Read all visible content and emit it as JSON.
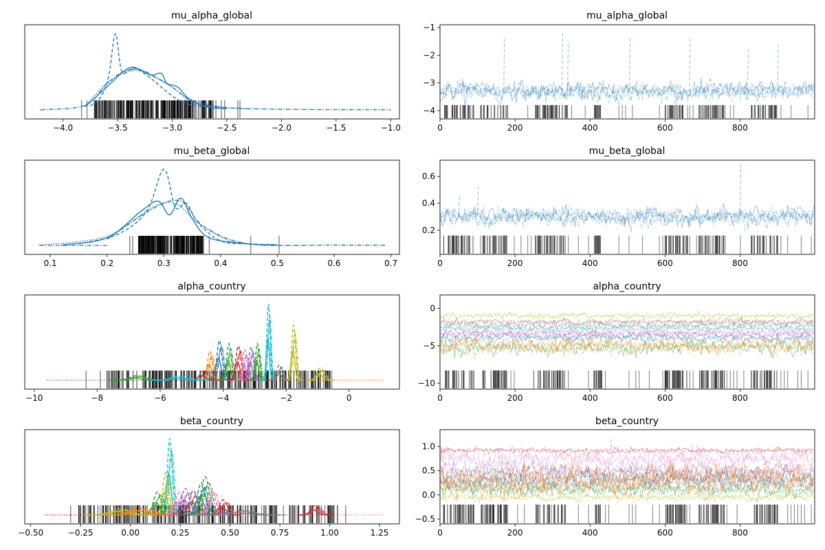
{
  "chart_data": [
    {
      "type": "area",
      "title": "mu_alpha_global",
      "xlabel": "",
      "ylabel": "",
      "xlim": [
        -4.35,
        -0.92
      ],
      "xticks": [
        -4.0,
        -3.5,
        -3.0,
        -2.5,
        -2.0,
        -1.5,
        -1.0
      ],
      "xtick_labels": [
        "−4.0",
        "−3.5",
        "−3.0",
        "−2.5",
        "−2.0",
        "−1.5",
        "−1.0"
      ],
      "color": "#1f77b4",
      "series": [
        {
          "style": "dashed",
          "points": [
            [
              -3.75,
              0.05
            ],
            [
              -3.65,
              0.18
            ],
            [
              -3.58,
              0.45
            ],
            [
              -3.52,
              1.0
            ],
            [
              -3.46,
              0.5
            ],
            [
              -3.35,
              0.55
            ],
            [
              -3.2,
              0.42
            ],
            [
              -3.05,
              0.24
            ],
            [
              -2.9,
              0.1
            ],
            [
              -2.7,
              0.04
            ],
            [
              -2.5,
              0.015
            ]
          ]
        },
        {
          "style": "solid",
          "points": [
            [
              -3.8,
              0.04
            ],
            [
              -3.6,
              0.3
            ],
            [
              -3.45,
              0.5
            ],
            [
              -3.35,
              0.56
            ],
            [
              -3.2,
              0.46
            ],
            [
              -3.1,
              0.48
            ],
            [
              -3.05,
              0.35
            ],
            [
              -2.95,
              0.3
            ],
            [
              -2.85,
              0.15
            ],
            [
              -2.7,
              0.05
            ],
            [
              -2.5,
              0.015
            ]
          ]
        },
        {
          "style": "dotted",
          "points": [
            [
              -3.8,
              0.05
            ],
            [
              -3.6,
              0.35
            ],
            [
              -3.45,
              0.48
            ],
            [
              -3.3,
              0.52
            ],
            [
              -3.15,
              0.42
            ],
            [
              -3.0,
              0.3
            ],
            [
              -2.85,
              0.15
            ],
            [
              -2.6,
              0.05
            ],
            [
              -2.3,
              0.015
            ]
          ]
        },
        {
          "style": "dashdot",
          "points": [
            [
              -4.2,
              0.003
            ],
            [
              -3.8,
              0.06
            ],
            [
              -3.6,
              0.34
            ],
            [
              -3.45,
              0.5
            ],
            [
              -3.3,
              0.53
            ],
            [
              -3.15,
              0.43
            ],
            [
              -3.0,
              0.3
            ],
            [
              -2.8,
              0.1
            ],
            [
              -2.5,
              0.03
            ],
            [
              -2.0,
              0.01
            ],
            [
              -1.5,
              0.005
            ],
            [
              -1.0,
              0.003
            ]
          ]
        }
      ],
      "rug": {
        "band": [
          -3.72,
          -2.62
        ],
        "isolated": [
          -3.83,
          -3.78,
          -2.6,
          -2.55,
          -2.52,
          -2.4,
          -2.38
        ]
      }
    },
    {
      "type": "line",
      "title": "mu_alpha_global",
      "xlabel": "",
      "ylabel": "",
      "xlim": [
        0,
        999
      ],
      "ylim": [
        -4.3,
        -0.9
      ],
      "xticks": [
        0,
        200,
        400,
        600,
        800
      ],
      "xtick_labels": [
        "0",
        "200",
        "400",
        "600",
        "800"
      ],
      "yticks": [
        -4,
        -3,
        -2,
        -1
      ],
      "ytick_labels": [
        "−4",
        "−3",
        "−2",
        "−1"
      ],
      "series_center": -3.3,
      "series_spread": 0.25,
      "spikes": [
        [
          170,
          -1.3
        ],
        [
          325,
          -1.1
        ],
        [
          340,
          -1.5
        ],
        [
          505,
          -1.3
        ],
        [
          665,
          -1.4
        ],
        [
          820,
          -1.8
        ],
        [
          900,
          -1.6
        ]
      ],
      "divergences": {
        "rug_y": -3.8,
        "dense_ranges": [
          [
            10,
            90
          ],
          [
            110,
            180
          ],
          [
            250,
            340
          ],
          [
            410,
            430
          ],
          [
            600,
            660
          ],
          [
            690,
            760
          ],
          [
            830,
            900
          ]
        ]
      }
    },
    {
      "type": "area",
      "title": "mu_beta_global",
      "xlabel": "",
      "ylabel": "",
      "xlim": [
        0.055,
        0.715
      ],
      "xticks": [
        0.1,
        0.2,
        0.3,
        0.4,
        0.5,
        0.6,
        0.7
      ],
      "xtick_labels": [
        "0.1",
        "0.2",
        "0.3",
        "0.4",
        "0.5",
        "0.6",
        "0.7"
      ],
      "color": "#1f77b4",
      "series": [
        {
          "style": "dashed",
          "points": [
            [
              0.15,
              0.02
            ],
            [
              0.22,
              0.15
            ],
            [
              0.27,
              0.45
            ],
            [
              0.3,
              1.0
            ],
            [
              0.32,
              0.5
            ],
            [
              0.34,
              0.55
            ],
            [
              0.36,
              0.3
            ],
            [
              0.4,
              0.06
            ],
            [
              0.45,
              0.02
            ],
            [
              0.5,
              0.01
            ]
          ]
        },
        {
          "style": "solid",
          "points": [
            [
              0.12,
              0.005
            ],
            [
              0.2,
              0.1
            ],
            [
              0.26,
              0.45
            ],
            [
              0.29,
              0.58
            ],
            [
              0.31,
              0.4
            ],
            [
              0.33,
              0.62
            ],
            [
              0.35,
              0.35
            ],
            [
              0.38,
              0.1
            ],
            [
              0.45,
              0.02
            ],
            [
              0.5,
              0.005
            ]
          ]
        },
        {
          "style": "dotted",
          "points": [
            [
              0.08,
              0.005
            ],
            [
              0.2,
              0.12
            ],
            [
              0.28,
              0.5
            ],
            [
              0.32,
              0.55
            ],
            [
              0.36,
              0.3
            ],
            [
              0.42,
              0.05
            ],
            [
              0.5,
              0.01
            ]
          ]
        },
        {
          "style": "dashdot",
          "points": [
            [
              0.2,
              0.08
            ],
            [
              0.28,
              0.48
            ],
            [
              0.33,
              0.58
            ],
            [
              0.37,
              0.25
            ],
            [
              0.45,
              0.02
            ],
            [
              0.6,
              0.005
            ],
            [
              0.69,
              0.003
            ]
          ]
        }
      ],
      "rug": {
        "band": [
          0.255,
          0.37
        ],
        "isolated": [
          0.24,
          0.245,
          0.37,
          0.38,
          0.453,
          0.503
        ]
      }
    },
    {
      "type": "line",
      "title": "mu_beta_global",
      "xlabel": "",
      "ylabel": "",
      "xlim": [
        0,
        999
      ],
      "ylim": [
        0.02,
        0.72
      ],
      "xticks": [
        0,
        200,
        400,
        600,
        800
      ],
      "xtick_labels": [
        "0",
        "200",
        "400",
        "600",
        "800"
      ],
      "yticks": [
        0.2,
        0.4,
        0.6
      ],
      "ytick_labels": [
        "0.2",
        "0.4",
        "0.6"
      ],
      "series_center": 0.3,
      "series_spread": 0.05,
      "spikes": [
        [
          100,
          0.52
        ],
        [
          800,
          0.7
        ],
        [
          50,
          0.45
        ]
      ],
      "divergences": {
        "rug_y": 0.16,
        "dense_ranges": [
          [
            10,
            90
          ],
          [
            110,
            180
          ],
          [
            250,
            340
          ],
          [
            410,
            430
          ],
          [
            600,
            660
          ],
          [
            690,
            760
          ],
          [
            830,
            900
          ]
        ]
      }
    },
    {
      "type": "area",
      "title": "alpha_country",
      "xlabel": "",
      "ylabel": "",
      "xlim": [
        -10.3,
        1.6
      ],
      "xticks": [
        -10,
        -8,
        -6,
        -4,
        -2,
        0
      ],
      "xtick_labels": [
        "−10",
        "−8",
        "−6",
        "−4",
        "−2",
        "0"
      ],
      "palette": [
        "#1f77b4",
        "#ff7f0e",
        "#2ca02c",
        "#d62728",
        "#9467bd",
        "#8c564b",
        "#e377c2",
        "#7f7f7f",
        "#bcbd22",
        "#17becf"
      ],
      "peaks": [
        {
          "loc": -4.4,
          "h": 0.38,
          "w": 0.08,
          "color": "#ff7f0e"
        },
        {
          "loc": -4.1,
          "h": 0.52,
          "w": 0.08,
          "color": "#1f77b4"
        },
        {
          "loc": -3.8,
          "h": 0.48,
          "w": 0.07,
          "color": "#2ca02c"
        },
        {
          "loc": -3.5,
          "h": 0.45,
          "w": 0.08,
          "color": "#d62728"
        },
        {
          "loc": -3.3,
          "h": 0.4,
          "w": 0.07,
          "color": "#e377c2"
        },
        {
          "loc": -3.1,
          "h": 0.44,
          "w": 0.07,
          "color": "#9467bd"
        },
        {
          "loc": -2.9,
          "h": 0.48,
          "w": 0.06,
          "color": "#2ca02c"
        },
        {
          "loc": -2.55,
          "h": 1.0,
          "w": 0.05,
          "color": "#17becf"
        },
        {
          "loc": -1.75,
          "h": 0.72,
          "w": 0.06,
          "color": "#bcbd22"
        },
        {
          "loc": -2.2,
          "h": 0.2,
          "w": 0.08,
          "color": "#7f7f7f"
        },
        {
          "loc": -0.9,
          "h": 0.16,
          "w": 0.1,
          "color": "#bcbd22"
        },
        {
          "loc": -4.6,
          "h": 0.12,
          "w": 0.12,
          "color": "#8c564b"
        },
        {
          "loc": -6.7,
          "h": 0.06,
          "w": 0.2,
          "color": "#2ca02c"
        },
        {
          "loc": -5.4,
          "h": 0.05,
          "w": 0.2,
          "color": "#17becf"
        }
      ],
      "rug": {
        "band": [
          -7.7,
          -0.6
        ],
        "isolated": [
          -8.35,
          -7.9,
          -0.55
        ]
      },
      "tails": [
        [
          -9.6,
          "#8c564b"
        ],
        [
          1.1,
          "#ff7f0e"
        ]
      ]
    },
    {
      "type": "line",
      "title": "alpha_country",
      "xlabel": "",
      "ylabel": "",
      "xlim": [
        0,
        999
      ],
      "ylim": [
        -10.8,
        1.8
      ],
      "xticks": [
        0,
        200,
        400,
        600,
        800
      ],
      "xtick_labels": [
        "0",
        "200",
        "400",
        "600",
        "800"
      ],
      "yticks": [
        -10,
        -5,
        0
      ],
      "ytick_labels": [
        "−10",
        "−5",
        "0"
      ],
      "bands": [
        {
          "center": -1.0,
          "spread": 0.3,
          "color": "#bcbd22"
        },
        {
          "center": -1.8,
          "spread": 0.3,
          "color": "#8c564b"
        },
        {
          "center": -2.3,
          "spread": 0.4,
          "color": "#7f7f7f"
        },
        {
          "center": -2.7,
          "spread": 0.3,
          "color": "#17becf"
        },
        {
          "center": -3.2,
          "spread": 0.3,
          "color": "#e377c2"
        },
        {
          "center": -3.5,
          "spread": 0.4,
          "color": "#9467bd"
        },
        {
          "center": -4.0,
          "spread": 0.4,
          "color": "#1f77b4"
        },
        {
          "center": -5.2,
          "spread": 0.8,
          "color": "#2ca02c"
        },
        {
          "center": -5.0,
          "spread": 0.8,
          "color": "#ff7f0e"
        }
      ],
      "divergences": {
        "rug_y": -8.3,
        "dense_ranges": [
          [
            10,
            90
          ],
          [
            110,
            180
          ],
          [
            250,
            340
          ],
          [
            410,
            430
          ],
          [
            600,
            660
          ],
          [
            690,
            760
          ],
          [
            830,
            900
          ]
        ]
      }
    },
    {
      "type": "area",
      "title": "beta_country",
      "xlabel": "",
      "ylabel": "",
      "xlim": [
        -0.53,
        1.35
      ],
      "xticks": [
        -0.5,
        -0.25,
        0.0,
        0.25,
        0.5,
        0.75,
        1.0,
        1.25
      ],
      "xtick_labels": [
        "−0.50",
        "−0.25",
        "0.00",
        "0.25",
        "0.50",
        "0.75",
        "1.00",
        "1.25"
      ],
      "palette": [
        "#1f77b4",
        "#ff7f0e",
        "#2ca02c",
        "#d62728",
        "#9467bd",
        "#8c564b",
        "#e377c2",
        "#7f7f7f",
        "#bcbd22",
        "#17becf"
      ],
      "peaks": [
        {
          "loc": 0.2,
          "h": 1.0,
          "w": 0.012,
          "color": "#17becf"
        },
        {
          "loc": 0.18,
          "h": 0.55,
          "w": 0.015,
          "color": "#bcbd22"
        },
        {
          "loc": 0.14,
          "h": 0.3,
          "w": 0.02,
          "color": "#2ca02c"
        },
        {
          "loc": 0.25,
          "h": 0.3,
          "w": 0.02,
          "color": "#e377c2"
        },
        {
          "loc": 0.28,
          "h": 0.35,
          "w": 0.02,
          "color": "#9467bd"
        },
        {
          "loc": 0.32,
          "h": 0.32,
          "w": 0.02,
          "color": "#8c564b"
        },
        {
          "loc": 0.36,
          "h": 0.42,
          "w": 0.02,
          "color": "#1f77b4"
        },
        {
          "loc": 0.38,
          "h": 0.5,
          "w": 0.02,
          "color": "#2ca02c"
        },
        {
          "loc": 0.41,
          "h": 0.35,
          "w": 0.02,
          "color": "#e377c2"
        },
        {
          "loc": 0.47,
          "h": 0.2,
          "w": 0.02,
          "color": "#d62728"
        },
        {
          "loc": -0.05,
          "h": 0.08,
          "w": 0.04,
          "color": "#bcbd22"
        },
        {
          "loc": 0.05,
          "h": 0.1,
          "w": 0.04,
          "color": "#ff7f0e"
        },
        {
          "loc": 0.93,
          "h": 0.12,
          "w": 0.02,
          "color": "#d62728"
        },
        {
          "loc": 0.55,
          "h": 0.06,
          "w": 0.05,
          "color": "#7f7f7f"
        }
      ],
      "rug": {
        "band": [
          -0.26,
          1.05
        ],
        "isolated": [
          -0.3,
          1.08
        ]
      },
      "tails": [
        [
          -0.43,
          "#d62728"
        ],
        [
          1.27,
          "#e377c2"
        ]
      ]
    },
    {
      "type": "line",
      "title": "beta_country",
      "xlabel": "",
      "ylabel": "",
      "xlim": [
        0,
        999
      ],
      "ylim": [
        -0.6,
        1.35
      ],
      "xticks": [
        0,
        200,
        400,
        600,
        800
      ],
      "xtick_labels": [
        "0",
        "200",
        "400",
        "600",
        "800"
      ],
      "yticks": [
        -0.5,
        0.0,
        0.5,
        1.0
      ],
      "ytick_labels": [
        "−0.5",
        "0.0",
        "0.5",
        "1.0"
      ],
      "bands": [
        {
          "center": 0.92,
          "spread": 0.04,
          "color": "#d62728"
        },
        {
          "center": 0.75,
          "spread": 0.15,
          "color": "#e377c2"
        },
        {
          "center": 0.5,
          "spread": 0.12,
          "color": "#9467bd"
        },
        {
          "center": 0.4,
          "spread": 0.15,
          "color": "#8c564b"
        },
        {
          "center": 0.3,
          "spread": 0.1,
          "color": "#1f77b4"
        },
        {
          "center": 0.2,
          "spread": 0.12,
          "color": "#7f7f7f"
        },
        {
          "center": 0.1,
          "spread": 0.1,
          "color": "#2ca02c"
        },
        {
          "center": -0.05,
          "spread": 0.06,
          "color": "#bcbd22"
        },
        {
          "center": 0.3,
          "spread": 0.25,
          "color": "#ff7f0e"
        }
      ],
      "divergences": {
        "rug_y": -0.2,
        "dense_ranges": [
          [
            10,
            90
          ],
          [
            110,
            180
          ],
          [
            250,
            340
          ],
          [
            410,
            430
          ],
          [
            600,
            660
          ],
          [
            690,
            760
          ],
          [
            830,
            900
          ]
        ]
      }
    }
  ]
}
